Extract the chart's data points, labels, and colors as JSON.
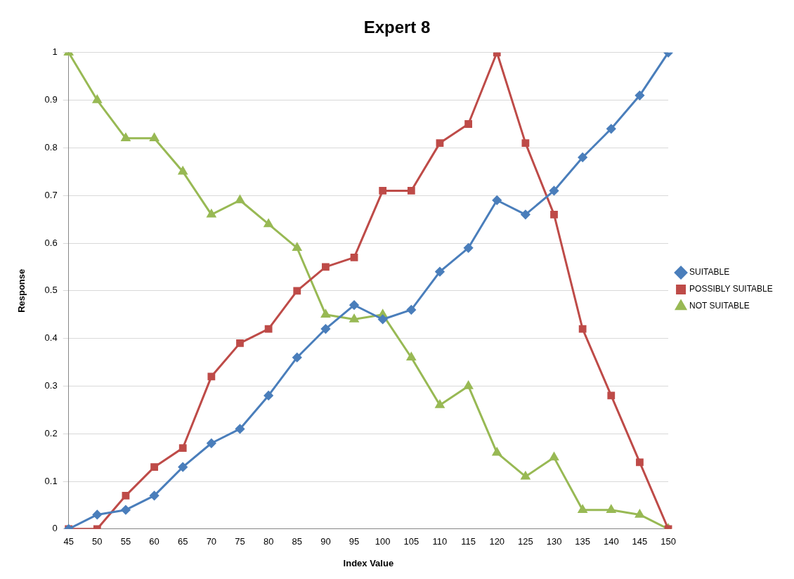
{
  "chart_data": {
    "type": "line",
    "title": "Expert 8",
    "xlabel": "Index Value",
    "ylabel": "Response",
    "categories": [
      "45",
      "50",
      "55",
      "60",
      "65",
      "70",
      "75",
      "80",
      "85",
      "90",
      "95",
      "100",
      "105",
      "110",
      "115",
      "120",
      "125",
      "130",
      "135",
      "140",
      "145",
      "150"
    ],
    "ylim": [
      0,
      1
    ],
    "yticks": [
      0,
      0.1,
      0.2,
      0.3,
      0.4,
      0.5,
      0.6,
      0.7,
      0.8,
      0.9,
      1
    ],
    "grid": "y",
    "legend": "right",
    "line_style": "solid",
    "series": [
      {
        "name": "SUITABLE",
        "color": "#4a7ebb",
        "marker": "diamond",
        "values": [
          0,
          0.03,
          0.04,
          0.07,
          0.13,
          0.18,
          0.21,
          0.28,
          0.36,
          0.42,
          0.47,
          0.44,
          0.46,
          0.54,
          0.59,
          0.69,
          0.66,
          0.71,
          0.78,
          0.84,
          0.91,
          1
        ]
      },
      {
        "name": "POSSIBLY SUITABLE",
        "color": "#be4b48",
        "marker": "square",
        "values": [
          0,
          0,
          0.07,
          0.13,
          0.17,
          0.32,
          0.39,
          0.42,
          0.5,
          0.55,
          0.57,
          0.71,
          0.71,
          0.81,
          0.85,
          1,
          0.81,
          0.66,
          0.42,
          0.28,
          0.14,
          0
        ]
      },
      {
        "name": "NOT SUITABLE",
        "color": "#98b954",
        "marker": "triangle",
        "values": [
          1,
          0.9,
          0.82,
          0.82,
          0.75,
          0.66,
          0.69,
          0.64,
          0.59,
          0.45,
          0.44,
          0.45,
          0.36,
          0.26,
          0.3,
          0.16,
          0.11,
          0.15,
          0.04,
          0.04,
          0.03,
          0
        ]
      }
    ]
  }
}
